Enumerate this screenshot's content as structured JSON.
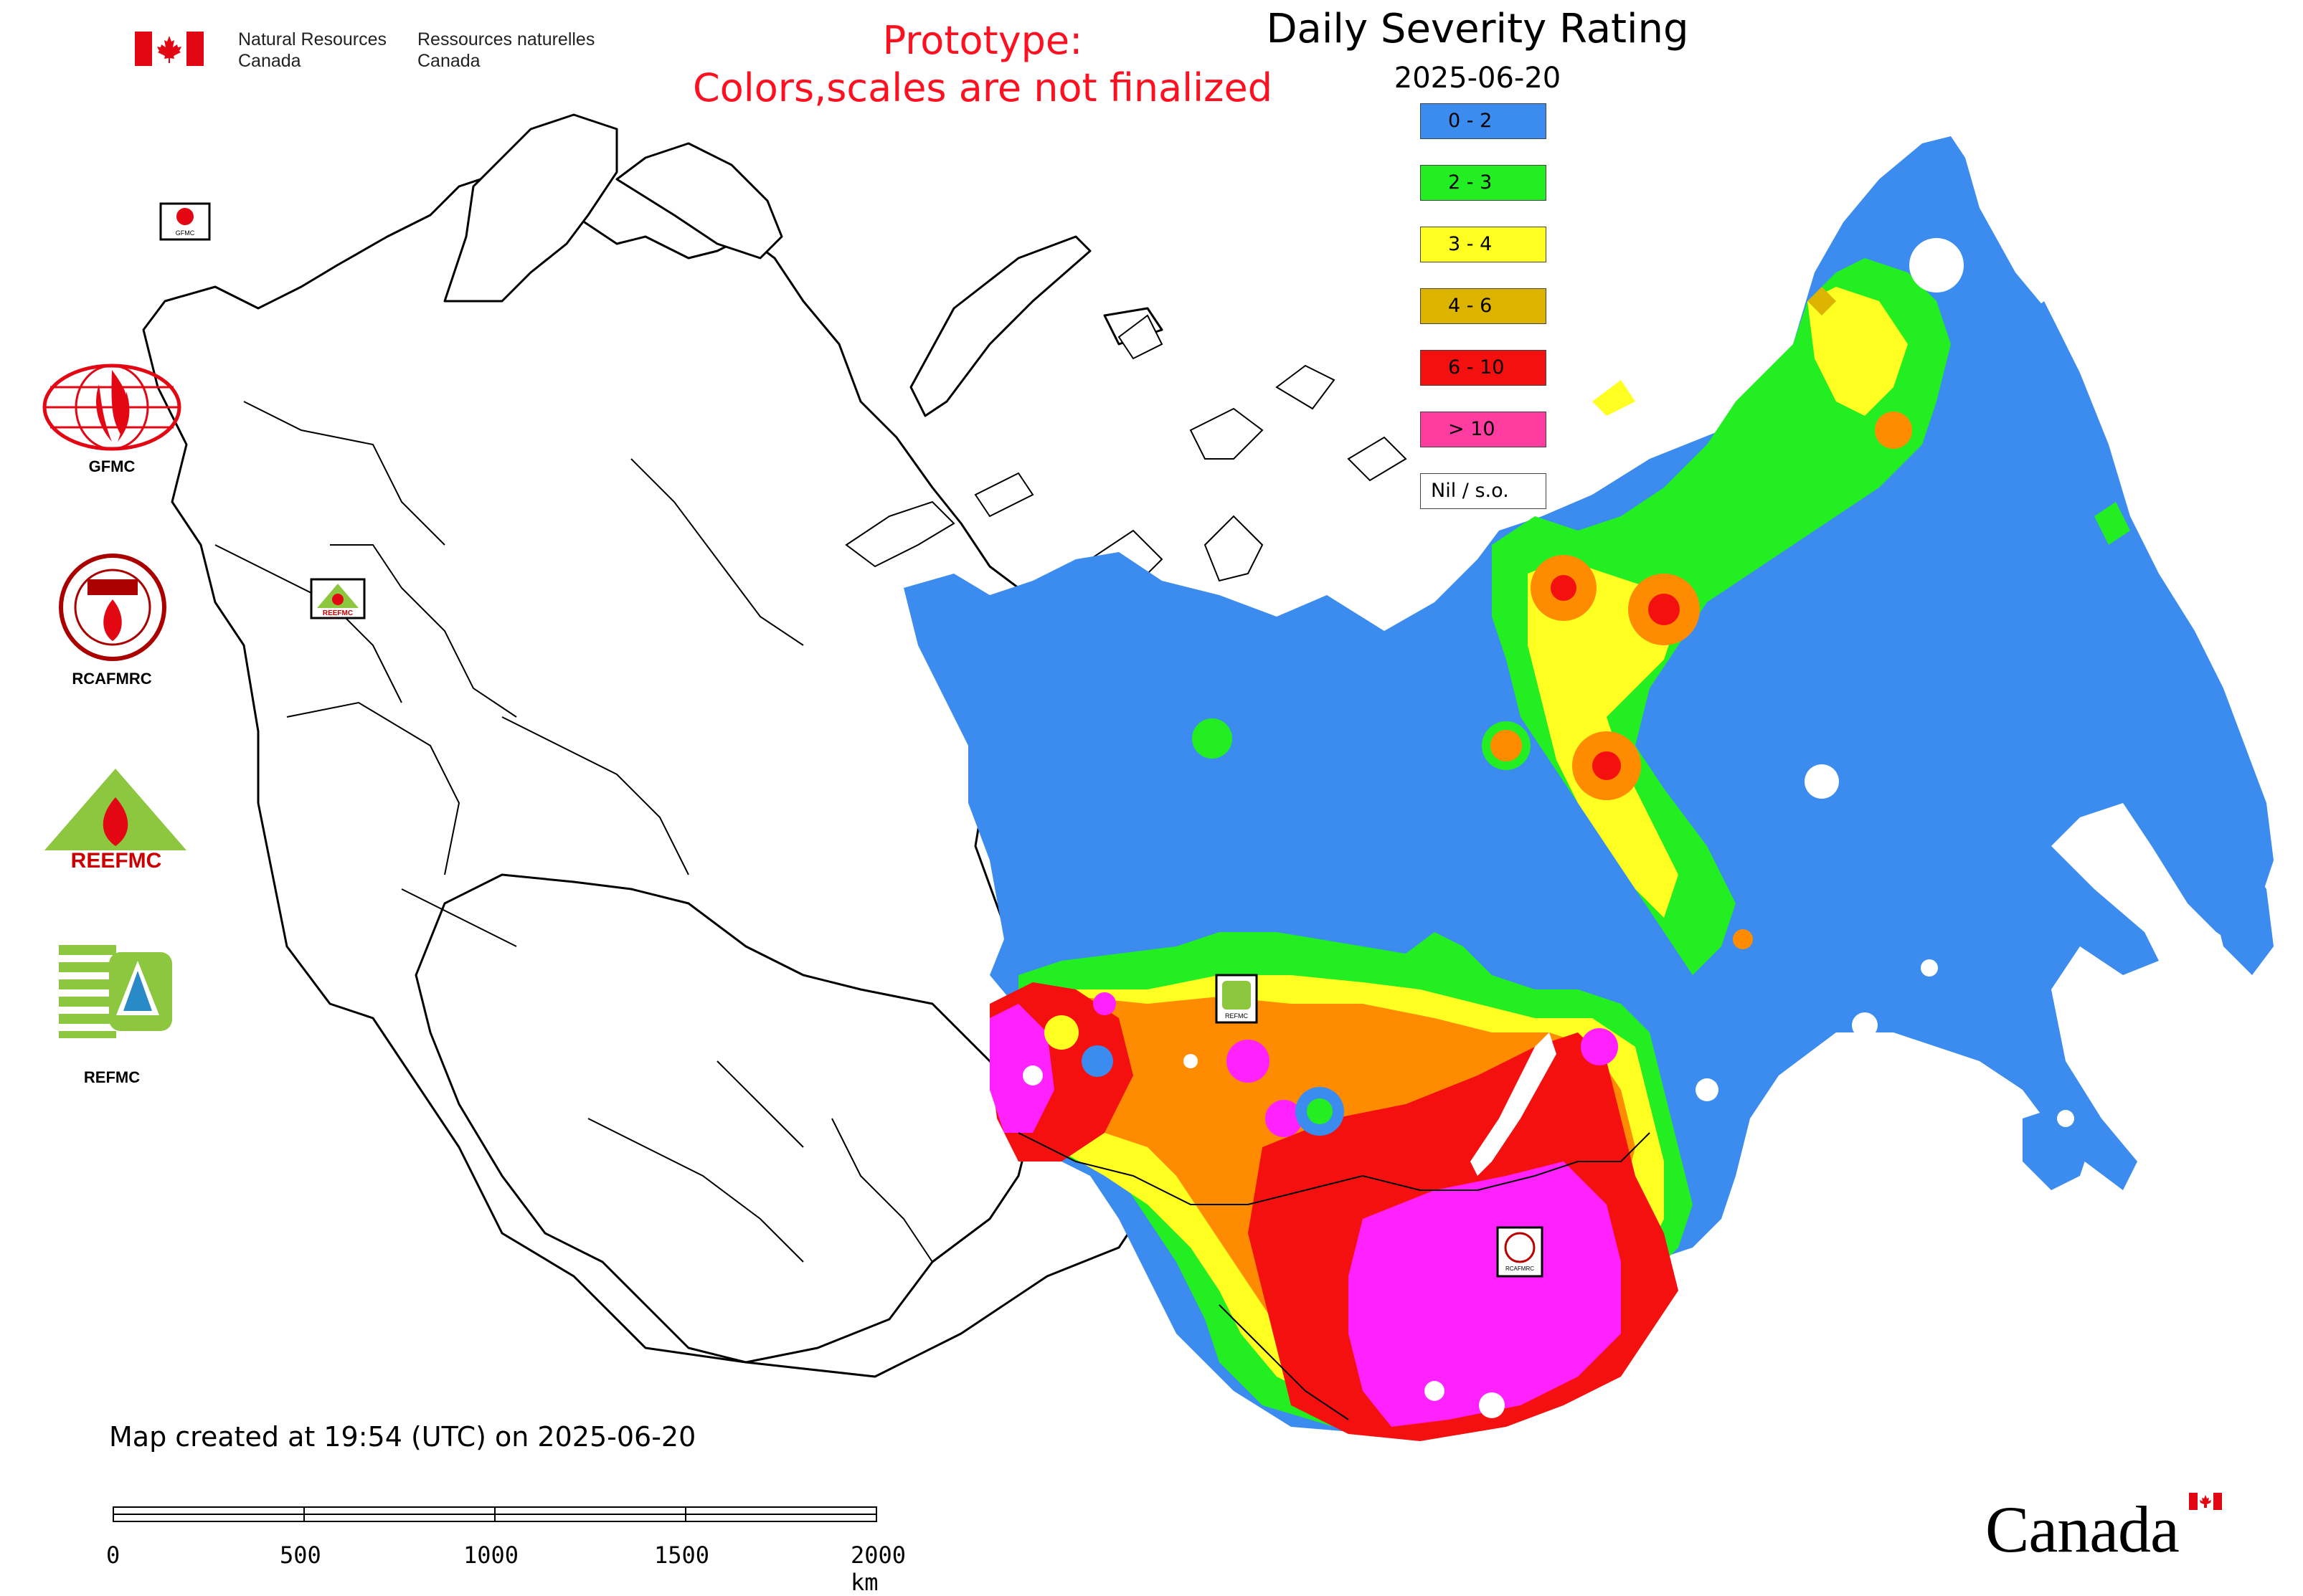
{
  "header": {
    "org_en_line1": "Natural Resources",
    "org_en_line2": "Canada",
    "org_fr_line1": "Ressources naturelles",
    "org_fr_line2": "Canada",
    "prototype_line1": "Prototype:",
    "prototype_line2": "Colors,scales are not finalized"
  },
  "legend": {
    "title": "Daily Severity Rating",
    "date": "2025-06-20",
    "classes": [
      {
        "label": "0 - 2",
        "color": "#3c8cf0"
      },
      {
        "label": "2 - 3",
        "color": "#22ee22"
      },
      {
        "label": "3 - 4",
        "color": "#ffff22"
      },
      {
        "label": "4 - 6",
        "color": "#dcb400"
      },
      {
        "label": "6 - 10",
        "color": "#f51010"
      },
      {
        "label": "> 10",
        "color": "#ff3ca0"
      },
      {
        "label": "Nil / s.o.",
        "color": "#ffffff"
      }
    ]
  },
  "side_logos": {
    "gfmc": "GFMC",
    "rcafmrc": "RCAFMRC",
    "reefmc": "REEFMC",
    "refmc": "REFMC"
  },
  "map_markers": {
    "gfmc": "GFMC",
    "reefmc": "REEFMC",
    "refmc": "REFMC",
    "rcafmrc": "RCAFMRC"
  },
  "footer": {
    "created": "Map created at 19:54 (UTC) on 2025-06-20",
    "scale_ticks": [
      "0",
      "500",
      "1000",
      "1500",
      "2000 km"
    ],
    "wordmark": "Canada"
  },
  "colors": {
    "blue": "#3c8cf0",
    "green": "#22ee22",
    "yellow": "#ffff22",
    "orange": "#ff8c00",
    "red": "#f51010",
    "magenta": "#ff22ff",
    "border": "#000000"
  }
}
